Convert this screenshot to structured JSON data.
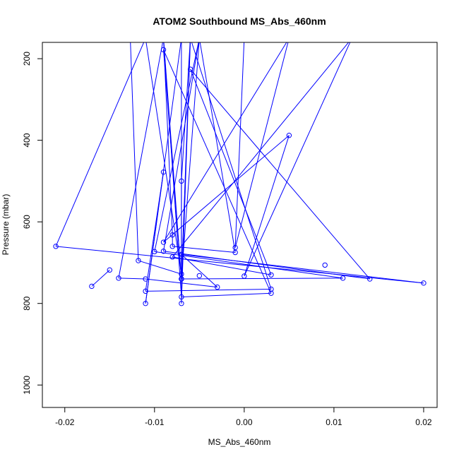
{
  "chart_data": {
    "type": "scatter",
    "title": "ATOM2 Southbound MS_Abs_460nm",
    "xlabel": "MS_Abs_460nm",
    "ylabel": "Pressure (mbar)",
    "xlim": [
      -0.0225,
      0.0215
    ],
    "ylim": [
      1055,
      160
    ],
    "y_reversed": true,
    "xticks": [
      -0.02,
      -0.01,
      0.0,
      0.01,
      0.02
    ],
    "xtick_labels": [
      "-0.02",
      "-0.01",
      "0.00",
      "0.01",
      "0.02"
    ],
    "yticks": [
      200,
      400,
      600,
      800,
      1000
    ],
    "ytick_labels": [
      "200",
      "400",
      "600",
      "800",
      "1000"
    ],
    "grid": false,
    "series": [
      {
        "color": "#0000ff",
        "marker": "open-circle",
        "line": true,
        "points": [
          {
            "x": -0.0127,
            "y": 150,
            "marker": false
          },
          {
            "x": -0.0118,
            "y": 695
          },
          {
            "x": -0.007,
            "y": 728
          },
          {
            "x": -0.011,
            "y": 150,
            "marker": false
          },
          {
            "x": -0.021,
            "y": 660
          },
          {
            "x": 0.02,
            "y": 750
          },
          {
            "x": -0.007,
            "y": 680
          },
          {
            "x": -0.003,
            "y": 760
          },
          {
            "x": -0.011,
            "y": 740
          },
          {
            "x": -0.014,
            "y": 738
          },
          {
            "x": -0.009,
            "y": 150,
            "marker": false
          },
          {
            "x": -0.007,
            "y": 784
          },
          {
            "x": 0.003,
            "y": 775
          },
          {
            "x": -0.009,
            "y": 178
          },
          {
            "x": -0.007,
            "y": 740
          },
          {
            "x": -0.006,
            "y": 150,
            "marker": false
          },
          {
            "x": 0.003,
            "y": 765
          },
          {
            "x": -0.011,
            "y": 770
          },
          {
            "x": -0.009,
            "y": 478
          },
          {
            "x": -0.011,
            "y": 800
          },
          {
            "x": -0.007,
            "y": 150,
            "marker": false
          },
          {
            "x": -0.007,
            "y": 800
          },
          {
            "x": -0.006,
            "y": 150,
            "marker": false
          },
          {
            "x": -0.007,
            "y": 500
          },
          {
            "x": -0.007,
            "y": 740
          },
          {
            "x": -0.009,
            "y": 150,
            "marker": false
          },
          {
            "x": -0.008,
            "y": 632
          },
          {
            "x": -0.008,
            "y": 660
          },
          {
            "x": -0.001,
            "y": 675
          },
          {
            "x": -0.005,
            "y": 150,
            "marker": false
          },
          {
            "x": -0.01,
            "y": 673
          },
          {
            "x": 0.011,
            "y": 738
          },
          {
            "x": -0.007,
            "y": 740
          },
          {
            "x": -0.005,
            "y": 150,
            "marker": false
          },
          {
            "x": -0.009,
            "y": 672
          },
          {
            "x": 0.014,
            "y": 740
          },
          {
            "x": -0.006,
            "y": 226
          },
          {
            "x": 0.003,
            "y": 730
          },
          {
            "x": -0.008,
            "y": 686
          },
          {
            "x": 0.012,
            "y": 150,
            "marker": false
          },
          {
            "x": 0.0,
            "y": 733
          },
          {
            "x": 0.005,
            "y": 388
          },
          {
            "x": -0.009,
            "y": 650
          },
          {
            "x": 0.005,
            "y": 150,
            "marker": false
          },
          {
            "x": -0.001,
            "y": 663
          },
          {
            "x": 0.0,
            "y": 150,
            "marker": false
          }
        ]
      }
    ],
    "extra_points": [
      {
        "x": -0.017,
        "y": 758
      },
      {
        "x": -0.015,
        "y": 718
      },
      {
        "x": -0.005,
        "y": 732
      },
      {
        "x": 0.009,
        "y": 706
      }
    ]
  }
}
